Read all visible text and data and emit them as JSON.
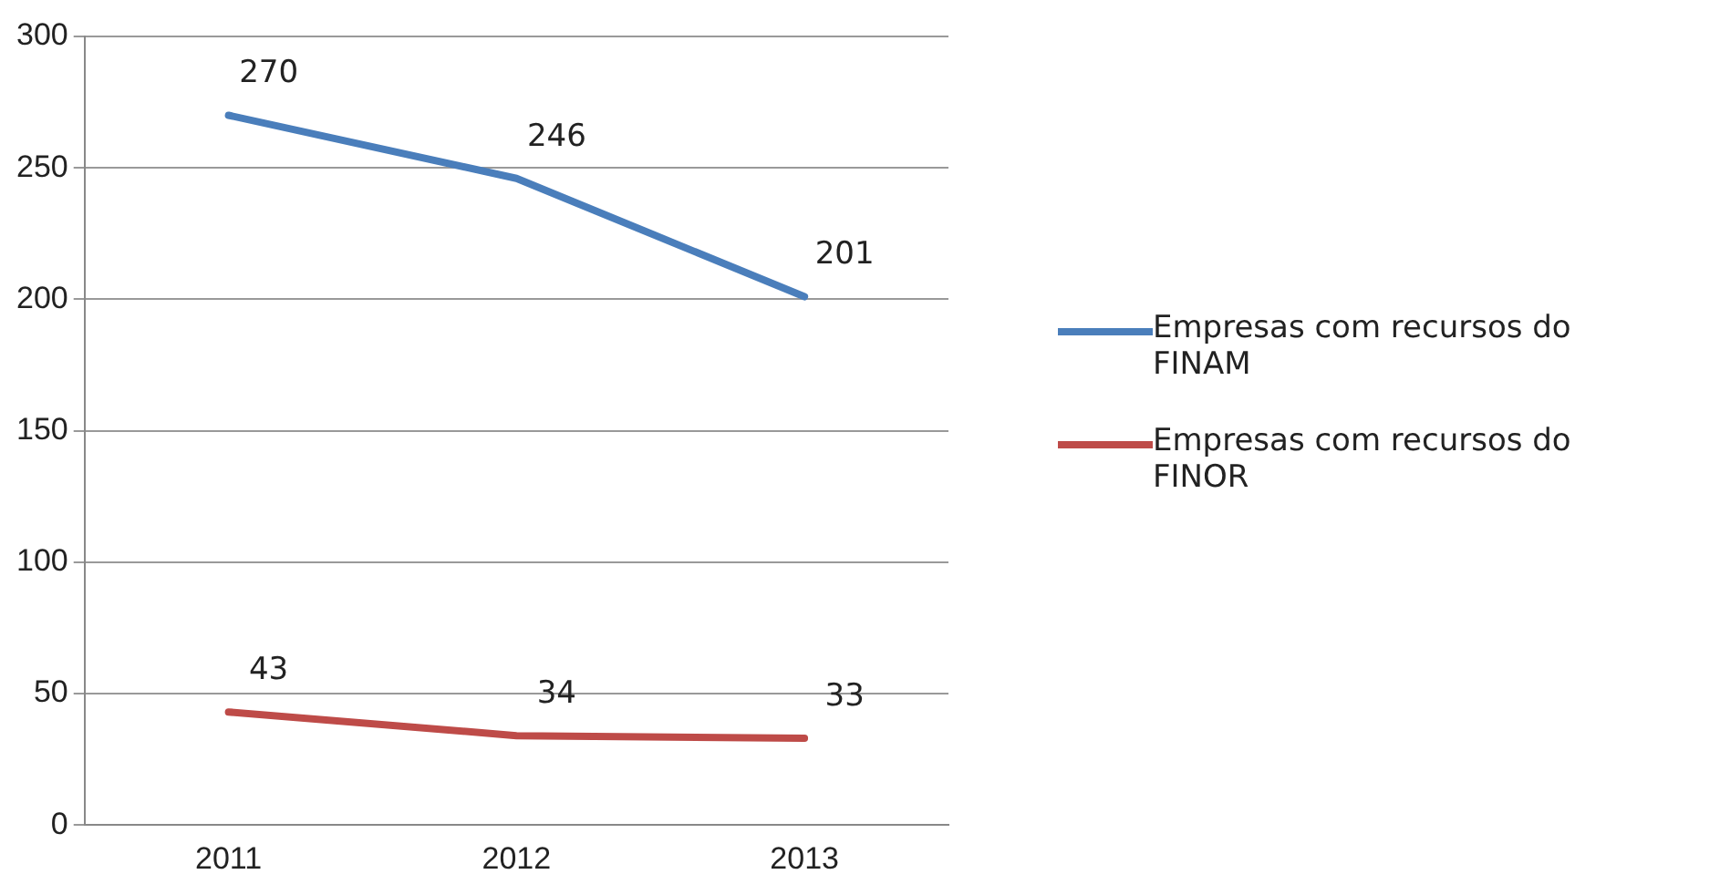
{
  "chart_data": {
    "type": "line",
    "categories": [
      "2011",
      "2012",
      "2013"
    ],
    "series": [
      {
        "name": "Empresas com recursos do FINAM",
        "color": "#4a7ebb",
        "values": [
          270,
          246,
          201
        ]
      },
      {
        "name": "Empresas com recursos do FINOR",
        "color": "#be4b48",
        "values": [
          43,
          34,
          33
        ]
      }
    ],
    "ylim": [
      0,
      300
    ],
    "yticks": [
      0,
      50,
      100,
      150,
      200,
      250,
      300
    ],
    "grid": "y",
    "legend": "right",
    "data_labels": true,
    "marker": "none",
    "line_style": "solid"
  }
}
